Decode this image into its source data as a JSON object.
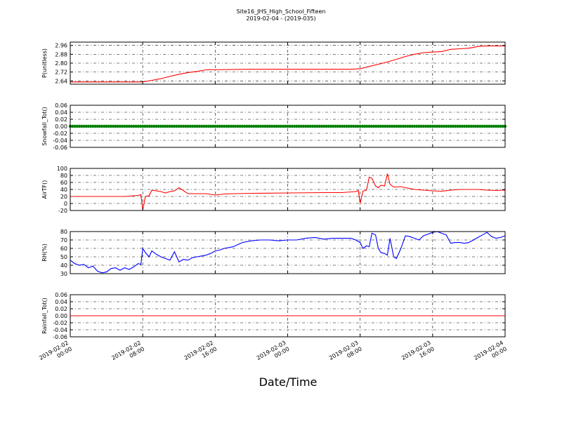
{
  "title": "Site16_JHS_High_School_Fifteen",
  "subtitle": "2019-02-04 - (2019-035)",
  "xlabel": "Date/Time",
  "x_ticks": [
    {
      "t": 0,
      "lines": [
        "2019-02-02",
        "00:00"
      ]
    },
    {
      "t": 8,
      "lines": [
        "2019-02-02",
        "08:00"
      ]
    },
    {
      "t": 16,
      "lines": [
        "2019-02-02",
        "16:00"
      ]
    },
    {
      "t": 24,
      "lines": [
        "2019-02-03",
        "00:00"
      ]
    },
    {
      "t": 32,
      "lines": [
        "2019-02-03",
        "08:00"
      ]
    },
    {
      "t": 40,
      "lines": [
        "2019-02-03",
        "16:00"
      ]
    },
    {
      "t": 48,
      "lines": [
        "2019-02-04",
        "00:00"
      ]
    }
  ],
  "chart_data": [
    {
      "type": "line",
      "ylabel": "P(unitless)",
      "color": "#ff0000",
      "ylim": [
        2.61,
        2.99
      ],
      "yticks": [
        "2.64",
        "2.72",
        "2.80",
        "2.88",
        "2.96"
      ],
      "grid": true,
      "x_range": [
        "2019-02-02 00:00",
        "2019-02-04 00:00"
      ],
      "x": [
        0,
        3,
        6,
        8,
        9,
        10,
        11,
        12,
        13,
        14,
        15,
        20,
        24,
        28,
        31,
        32,
        33,
        34,
        35,
        36,
        37,
        38,
        39,
        40,
        41,
        42,
        43,
        44,
        45,
        46,
        47,
        48
      ],
      "values": [
        2.63,
        2.63,
        2.63,
        2.63,
        2.645,
        2.66,
        2.68,
        2.7,
        2.715,
        2.725,
        2.74,
        2.745,
        2.745,
        2.745,
        2.745,
        2.75,
        2.77,
        2.79,
        2.81,
        2.835,
        2.86,
        2.88,
        2.895,
        2.9,
        2.905,
        2.925,
        2.93,
        2.935,
        2.95,
        2.955,
        2.955,
        2.955
      ]
    },
    {
      "type": "line",
      "ylabel": "Snowfall_Tot()",
      "color": "#008000",
      "ylim": [
        -0.06,
        0.06
      ],
      "yticks": [
        "0.06",
        "0.04",
        "0.02",
        "0.00",
        "-0.02",
        "-0.04",
        "-0.06"
      ],
      "grid": true,
      "marker": "dot",
      "x_range": [
        "2019-02-02 00:00",
        "2019-02-04 00:00"
      ],
      "x": [
        0,
        48
      ],
      "values": [
        0.0,
        0.0
      ]
    },
    {
      "type": "line",
      "ylabel": "AirTF()",
      "color": "#ff0000",
      "ylim": [
        -20,
        100
      ],
      "yticks": [
        "100",
        "80",
        "60",
        "40",
        "20",
        "0",
        "-20"
      ],
      "grid": true,
      "x_range": [
        "2019-02-02 00:00",
        "2019-02-04 00:00"
      ],
      "x": [
        0,
        3,
        6,
        7.5,
        7.8,
        8,
        8.3,
        8.7,
        9,
        10,
        10.5,
        11,
        11.5,
        12,
        13,
        14,
        15,
        15.5,
        16,
        17,
        18,
        20,
        24,
        28,
        30,
        31.5,
        31.8,
        32,
        32.3,
        32.7,
        33,
        33.3,
        33.7,
        34,
        34.3,
        34.7,
        35,
        35.3,
        35.7,
        36,
        36.5,
        37,
        38,
        39,
        40,
        41,
        42,
        43,
        44,
        45,
        46,
        47,
        48
      ],
      "values": [
        20,
        20,
        20,
        23,
        25,
        -18,
        20,
        22,
        38,
        34,
        30,
        34,
        36,
        45,
        28,
        28,
        28,
        26,
        24,
        27,
        28,
        29,
        30,
        31,
        31,
        34,
        37,
        0,
        35,
        38,
        75,
        72,
        50,
        45,
        52,
        50,
        85,
        55,
        47,
        47,
        48,
        45,
        40,
        38,
        36,
        35,
        38,
        40,
        40,
        40,
        38,
        37,
        38
      ]
    },
    {
      "type": "line",
      "ylabel": "RH(%)",
      "color": "#0000ff",
      "ylim": [
        30,
        80
      ],
      "yticks": [
        "80",
        "70",
        "60",
        "50",
        "40",
        "30"
      ],
      "grid": true,
      "x_range": [
        "2019-02-02 00:00",
        "2019-02-04 00:00"
      ],
      "x": [
        0,
        0.5,
        1,
        1.5,
        2,
        2.5,
        3,
        3.5,
        4,
        4.5,
        5,
        5.5,
        6,
        6.5,
        7,
        7.5,
        7.8,
        8,
        8.3,
        8.7,
        9,
        9.5,
        10,
        10.5,
        11,
        11.5,
        12,
        12.5,
        13,
        13.5,
        14,
        14.5,
        15,
        15.5,
        16,
        16.5,
        17,
        18,
        19,
        20,
        21,
        22,
        23,
        24,
        25,
        26,
        27,
        28,
        29,
        30,
        31,
        31.5,
        32,
        32.3,
        32.7,
        33,
        33.3,
        33.7,
        34,
        34.3,
        34.7,
        35,
        35.3,
        35.7,
        36,
        36.5,
        37,
        37.5,
        38,
        38.5,
        39,
        39.5,
        40,
        40.5,
        41,
        41.5,
        42,
        42.5,
        43,
        43.5,
        44,
        44.5,
        45,
        45.5,
        46,
        46.5,
        47,
        47.5,
        48
      ],
      "values": [
        46,
        42,
        40,
        41,
        37,
        39,
        33,
        31,
        32,
        36,
        37,
        34,
        37,
        35,
        38,
        42,
        41,
        60,
        55,
        50,
        57,
        53,
        50,
        48,
        46,
        56,
        44,
        47,
        46,
        49,
        50,
        51,
        52,
        54,
        57,
        58,
        60,
        62,
        67,
        69,
        70,
        70,
        69,
        70,
        70,
        72,
        73,
        71,
        72,
        72,
        72,
        70,
        67,
        60,
        63,
        62,
        78,
        76,
        60,
        55,
        54,
        52,
        72,
        50,
        48,
        60,
        75,
        74,
        72,
        70,
        75,
        77,
        79,
        80,
        78,
        76,
        66,
        67,
        67,
        66,
        67,
        70,
        73,
        76,
        79,
        74,
        72,
        73,
        75
      ]
    },
    {
      "type": "line",
      "ylabel": "Rainfall_Tot()",
      "color": "#ff0000",
      "ylim": [
        -0.06,
        0.06
      ],
      "yticks": [
        "0.06",
        "0.04",
        "0.02",
        "0.00",
        "-0.02",
        "-0.04",
        "-0.06"
      ],
      "grid": true,
      "x_range": [
        "2019-02-02 00:00",
        "2019-02-04 00:00"
      ],
      "x": [
        0,
        48
      ],
      "values": [
        0.0,
        0.0
      ]
    }
  ]
}
